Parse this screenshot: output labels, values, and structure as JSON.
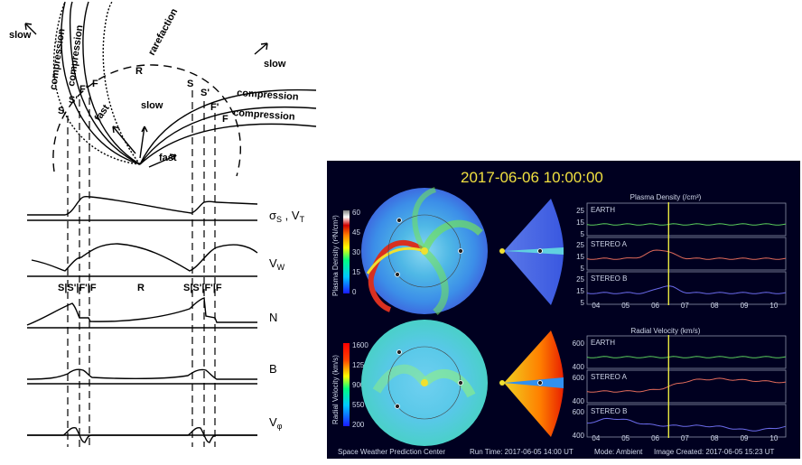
{
  "left_diagram": {
    "top": {
      "labels": {
        "slow_upper_left": "slow",
        "compression_1": "compression",
        "compression_2": "compression",
        "rarefaction": "rarefaction",
        "slow_upper_right": "slow",
        "R": "R",
        "S_left": "S",
        "S_prime_left": "S'",
        "F_prime_left": "F'",
        "F_left": "F",
        "fast_left": "fast",
        "slow_mid": "slow",
        "fast_mid": "fast",
        "S_right": "S",
        "S_prime_right": "S'",
        "compression_3": "compression",
        "compression_4": "compression",
        "F_prime_right": "F'",
        "F_right": "F"
      }
    },
    "rows": [
      {
        "label": "σS , VT"
      },
      {
        "label": "VW"
      },
      {
        "label": "N"
      },
      {
        "label": "B"
      },
      {
        "label": "Vφ"
      }
    ],
    "row_labels_text": {
      "sigma": "σ",
      "sigma_sub": "S",
      "sigma_tail": " , V",
      "sigma_tail_sub": "T",
      "vw": "V",
      "vw_sub": "W",
      "n": "N",
      "b": "B",
      "vphi": "V",
      "vphi_sub": "φ"
    },
    "mid_labels": {
      "left_group": "S|S'|F'|F",
      "R": "R",
      "right_group": "S|S'|F'|F"
    }
  },
  "enlil": {
    "timestamp": "2017-06-06  10:00:00",
    "density_colorbar": {
      "label": "Plasma Density (r²N/cm³)",
      "ticks": [
        "60",
        "45",
        "30",
        "15",
        "0"
      ]
    },
    "velocity_colorbar": {
      "label": "Radial Velocity (km/s)",
      "ticks": [
        "1600",
        "1250",
        "900",
        "550",
        "200"
      ]
    },
    "density_panel": {
      "title": "Plasma Density (/cm³)",
      "rows": [
        {
          "name": "EARTH",
          "ticks": [
            "25",
            "15",
            "5"
          ],
          "color": "#58c95a"
        },
        {
          "name": "STEREO A",
          "ticks": [
            "25",
            "15",
            "5"
          ],
          "color": "#e06a5a"
        },
        {
          "name": "STEREO B",
          "ticks": [
            "25",
            "15",
            "5"
          ],
          "color": "#6a6ae8"
        }
      ]
    },
    "velocity_panel": {
      "title": "Radial Velocity (km/s)",
      "rows": [
        {
          "name": "EARTH",
          "ticks": [
            "600",
            "400"
          ],
          "color": "#58c95a"
        },
        {
          "name": "STEREO A",
          "ticks": [
            "600",
            "400"
          ],
          "color": "#e06a5a"
        },
        {
          "name": "STEREO B",
          "ticks": [
            "600",
            "400"
          ],
          "color": "#6a6ae8"
        }
      ]
    },
    "x_ticks": [
      "04",
      "05",
      "06",
      "07",
      "08",
      "09",
      "10"
    ],
    "current_marker_day": 6.45,
    "footer": {
      "left": "Space Weather Prediction Center",
      "run_time": "Run Time: 2017-06-05 14:00 UT",
      "mode": "Mode: Ambient",
      "created": "Image Created: 2017-06-05 15:23 UT"
    }
  }
}
